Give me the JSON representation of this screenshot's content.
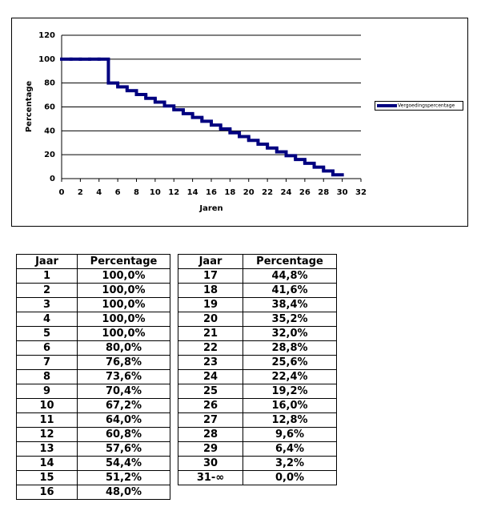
{
  "chart_data": {
    "type": "step",
    "x_label": "Jaren",
    "y_label": "Percentage",
    "x": [
      1,
      2,
      3,
      4,
      5,
      6,
      7,
      8,
      9,
      10,
      11,
      12,
      13,
      14,
      15,
      16,
      17,
      18,
      19,
      20,
      21,
      22,
      23,
      24,
      25,
      26,
      27,
      28,
      29,
      30
    ],
    "series": [
      {
        "name": "Vergoedingspercentage",
        "color": "#000080",
        "values": [
          100,
          100,
          100,
          100,
          100,
          80,
          76.8,
          73.6,
          70.4,
          67.2,
          64,
          60.8,
          57.6,
          54.4,
          51.2,
          48,
          44.8,
          41.6,
          38.4,
          35.2,
          32,
          28.8,
          25.6,
          22.4,
          19.2,
          16,
          12.8,
          9.6,
          6.4,
          3.2
        ]
      }
    ],
    "xlim": [
      0,
      32
    ],
    "xticks": [
      0,
      2,
      4,
      6,
      8,
      10,
      12,
      14,
      16,
      18,
      20,
      22,
      24,
      26,
      28,
      30,
      32
    ],
    "ylim": [
      0,
      120
    ],
    "yticks": [
      0,
      20,
      40,
      60,
      80,
      100,
      120
    ],
    "grid": true,
    "legend": "right"
  },
  "tables": [
    {
      "header": [
        "Jaar",
        "Percentage"
      ],
      "rows": [
        [
          "1",
          "100,0%"
        ],
        [
          "2",
          "100,0%"
        ],
        [
          "3",
          "100,0%"
        ],
        [
          "4",
          "100,0%"
        ],
        [
          "5",
          "100,0%"
        ],
        [
          "6",
          "80,0%"
        ],
        [
          "7",
          "76,8%"
        ],
        [
          "8",
          "73,6%"
        ],
        [
          "9",
          "70,4%"
        ],
        [
          "10",
          "67,2%"
        ],
        [
          "11",
          "64,0%"
        ],
        [
          "12",
          "60,8%"
        ],
        [
          "13",
          "57,6%"
        ],
        [
          "14",
          "54,4%"
        ],
        [
          "15",
          "51,2%"
        ],
        [
          "16",
          "48,0%"
        ]
      ]
    },
    {
      "header": [
        "Jaar",
        "Percentage"
      ],
      "rows": [
        [
          "17",
          "44,8%"
        ],
        [
          "18",
          "41,6%"
        ],
        [
          "19",
          "38,4%"
        ],
        [
          "20",
          "35,2%"
        ],
        [
          "21",
          "32,0%"
        ],
        [
          "22",
          "28,8%"
        ],
        [
          "23",
          "25,6%"
        ],
        [
          "24",
          "22,4%"
        ],
        [
          "25",
          "19,2%"
        ],
        [
          "26",
          "16,0%"
        ],
        [
          "27",
          "12,8%"
        ],
        [
          "28",
          "9,6%"
        ],
        [
          "29",
          "6,4%"
        ],
        [
          "30",
          "3,2%"
        ],
        [
          "31-∞",
          "0,0%"
        ]
      ]
    }
  ]
}
